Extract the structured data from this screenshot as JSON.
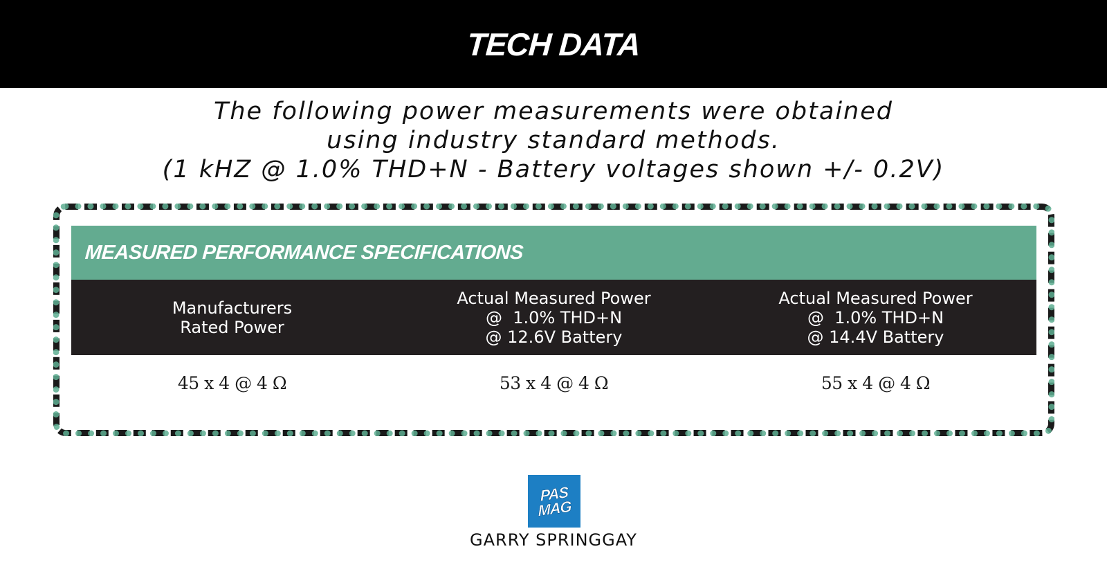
{
  "banner": {
    "title": "TECH DATA"
  },
  "intro": {
    "line1": "The following power measurements were obtained",
    "line2": "using industry standard methods.",
    "line3": "(1 kHZ @ 1.0% THD+N - Battery voltages shown +/- 0.2V)"
  },
  "spec_table": {
    "heading": "MEASURED PERFORMANCE SPECIFICATIONS",
    "columns": [
      {
        "lines": [
          "Manufacturers",
          "Rated Power"
        ]
      },
      {
        "lines": [
          "Actual Measured Power",
          "@  1.0% THD+N",
          "@ 12.6V Battery"
        ]
      },
      {
        "lines": [
          "Actual Measured Power",
          "@  1.0% THD+N",
          "@ 14.4V Battery"
        ]
      }
    ],
    "values": [
      "45 x 4 @ 4 Ω",
      "53 x 4 @ 4 Ω",
      "55 x 4 @ 4 Ω"
    ]
  },
  "logo": {
    "line1": "PAS",
    "line2": "MAG"
  },
  "author": {
    "name": "GARRY SPRINGGAY"
  },
  "colors": {
    "banner_bg": "#000000",
    "accent_green": "#63ab90",
    "header_dark": "#231f20",
    "logo_blue": "#1d7fc4"
  }
}
